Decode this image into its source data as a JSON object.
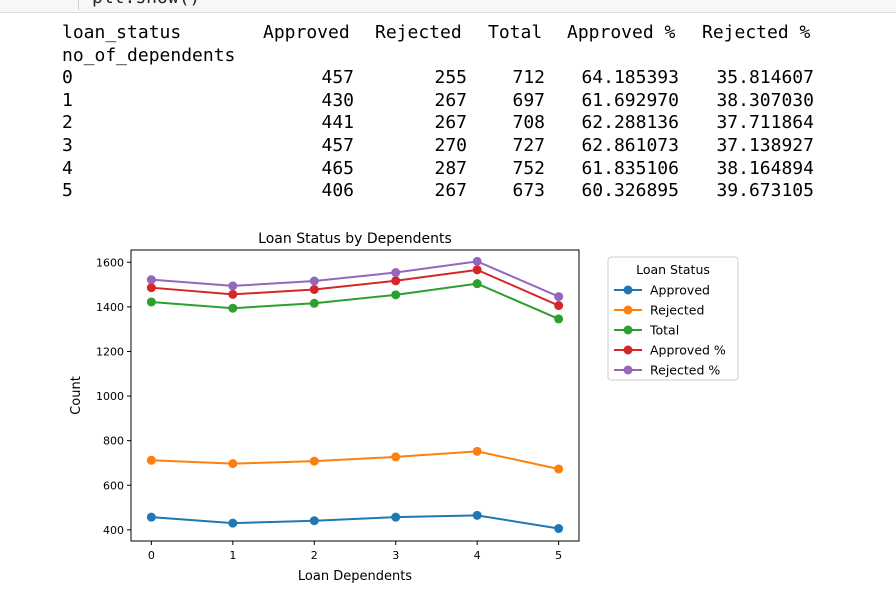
{
  "code_line": "plt.show()",
  "table": {
    "header_cols": [
      "loan_status",
      "Approved",
      "Rejected",
      "Total",
      "Approved %",
      "Rejected %"
    ],
    "index_name": "no_of_dependents",
    "rows": [
      [
        "0",
        "457",
        "255",
        "712",
        "64.185393",
        "35.814607"
      ],
      [
        "1",
        "430",
        "267",
        "697",
        "61.692970",
        "38.307030"
      ],
      [
        "2",
        "441",
        "267",
        "708",
        "62.288136",
        "37.711864"
      ],
      [
        "3",
        "457",
        "270",
        "727",
        "62.861073",
        "37.138927"
      ],
      [
        "4",
        "465",
        "287",
        "752",
        "61.835106",
        "38.164894"
      ],
      [
        "5",
        "406",
        "267",
        "673",
        "60.326895",
        "39.673105"
      ]
    ]
  },
  "chart_data": {
    "type": "line",
    "title": "Loan Status by Dependents",
    "xlabel": "Loan Dependents",
    "ylabel": "Count",
    "x": [
      0,
      1,
      2,
      3,
      4,
      5
    ],
    "xticks": [
      "0",
      "1",
      "2",
      "3",
      "4",
      "5"
    ],
    "yticks": [
      "400",
      "600",
      "800",
      "1000",
      "1200",
      "1400",
      "1600"
    ],
    "ylim": [
      350,
      1655
    ],
    "xlim": [
      -0.25,
      5.25
    ],
    "grid": false,
    "legend_title": "Loan Status",
    "legend_placement": "outside right",
    "series": [
      {
        "name": "Approved",
        "color": "#1f77b4",
        "values": [
          457,
          430,
          441,
          457,
          465,
          406
        ]
      },
      {
        "name": "Rejected",
        "color": "#ff7f0e",
        "values": [
          712,
          697,
          708,
          727,
          752,
          673
        ]
      },
      {
        "name": "Total",
        "color": "#2ca02c",
        "values": [
          1422,
          1394,
          1416,
          1454,
          1504,
          1346
        ]
      },
      {
        "name": "Approved %",
        "color": "#d62728",
        "values": [
          1486,
          1456,
          1478,
          1517,
          1566,
          1406
        ]
      },
      {
        "name": "Rejected %",
        "color": "#9467bd",
        "values": [
          1522,
          1494,
          1516,
          1554,
          1604,
          1446
        ]
      }
    ]
  }
}
